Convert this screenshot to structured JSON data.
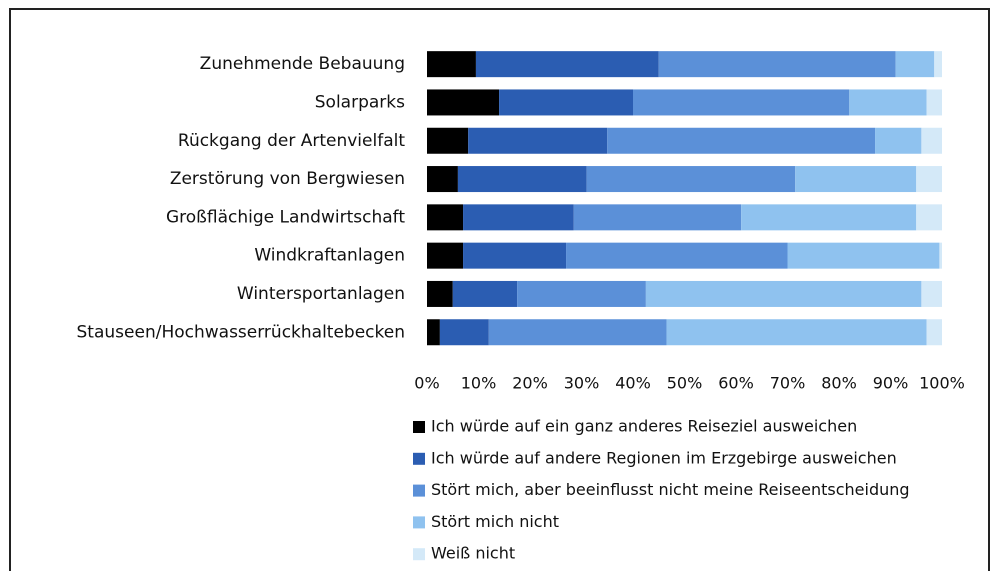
{
  "chart_data": {
    "type": "stacked-bar-horizontal",
    "categories": [
      "Zunehmende Bebauung",
      "Solarparks",
      "Rückgang der Artenvielfalt",
      "Zerstörung von Bergwiesen",
      "Großflächige Landwirtschaft",
      "Windkraftanlagen",
      "Wintersportanlagen",
      "Stauseen/Hochwasserrückhaltebecken"
    ],
    "series": [
      {
        "name": "Ich würde auf ein ganz anderes Reiseziel ausweichen",
        "color": "#000000",
        "values": [
          9.5,
          14,
          8,
          6,
          7,
          7,
          5,
          2.5
        ]
      },
      {
        "name": "Ich würde auf andere Regionen im Erzgebirge ausweichen",
        "color": "#2b5db2",
        "values": [
          35.5,
          26,
          27,
          25,
          21.5,
          20,
          12.5,
          9.5
        ]
      },
      {
        "name": "Stört mich, aber beeinflusst nicht meine Reiseentscheidung",
        "color": "#5b90d8",
        "values": [
          46,
          42,
          52,
          40.5,
          32.5,
          43,
          25,
          34.5
        ]
      },
      {
        "name": "Stört mich nicht",
        "color": "#8fc2ef",
        "values": [
          7.5,
          15,
          9,
          23.5,
          34,
          29.5,
          53.5,
          50.5
        ]
      },
      {
        "name": "Weiß nicht",
        "color": "#d4e9f8",
        "values": [
          1.5,
          3,
          4,
          5,
          5,
          0.5,
          4,
          3
        ]
      }
    ],
    "xlim": [
      0,
      100
    ],
    "xticks": [
      {
        "value": 0,
        "label": "0%"
      },
      {
        "value": 10,
        "label": "10%"
      },
      {
        "value": 20,
        "label": "20%"
      },
      {
        "value": 30,
        "label": "30%"
      },
      {
        "value": 40,
        "label": "40%"
      },
      {
        "value": 50,
        "label": "50%"
      },
      {
        "value": 60,
        "label": "60%"
      },
      {
        "value": 70,
        "label": "70%"
      },
      {
        "value": 80,
        "label": "80%"
      },
      {
        "value": 90,
        "label": "90%"
      },
      {
        "value": 100,
        "label": "100%"
      }
    ],
    "grid": false,
    "legend_position": "bottom"
  }
}
